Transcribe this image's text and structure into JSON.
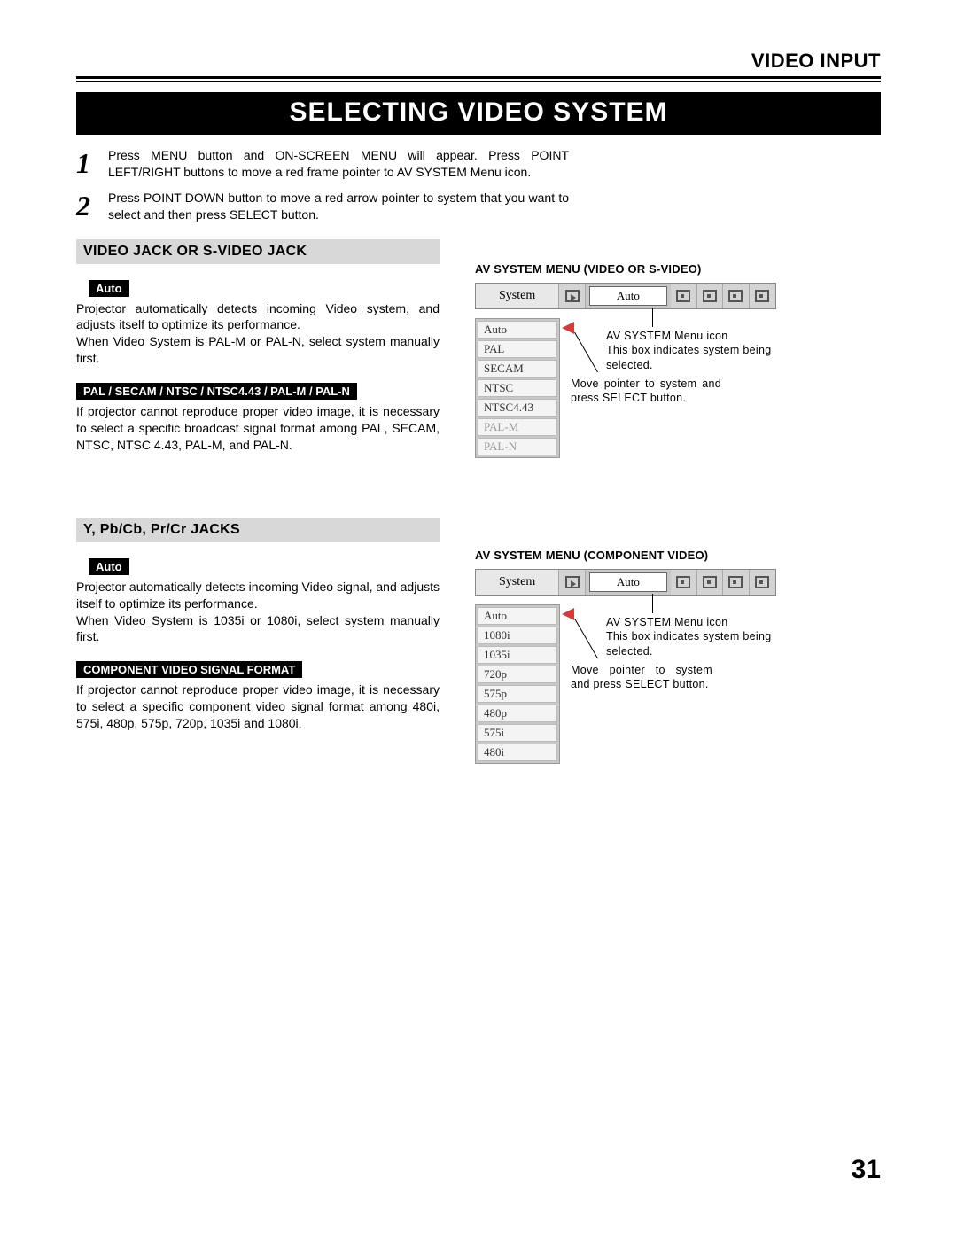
{
  "header": {
    "section": "VIDEO INPUT"
  },
  "title": "SELECTING VIDEO SYSTEM",
  "steps": [
    {
      "num": "1",
      "text": "Press MENU button and ON-SCREEN MENU will appear.  Press POINT LEFT/RIGHT buttons to move a red frame pointer to AV SYSTEM Menu icon."
    },
    {
      "num": "2",
      "text": "Press POINT DOWN button to move a red arrow pointer to system that you want to select and then press SELECT button."
    }
  ],
  "videoJack": {
    "heading": "VIDEO JACK OR S-VIDEO JACK",
    "auto_tag": "Auto",
    "auto_text": "Projector automatically detects incoming Video system, and adjusts itself to optimize its performance.\nWhen Video System is PAL-M or PAL-N, select system manually first.",
    "formats_tag": "PAL / SECAM / NTSC / NTSC4.43 / PAL-M / PAL-N",
    "formats_text": "If projector cannot reproduce proper video image, it is necessary to select a specific broadcast signal format among PAL, SECAM, NTSC, NTSC 4.43, PAL-M, and PAL-N."
  },
  "componentJack": {
    "heading": "Y, Pb/Cb, Pr/Cr JACKS",
    "auto_tag": "Auto",
    "auto_text": "Projector automatically detects incoming Video signal, and adjusts itself to optimize its performance.\nWhen Video System is 1035i or 1080i, select system manually first.",
    "formats_tag": "COMPONENT VIDEO SIGNAL FORMAT",
    "formats_text": "If projector cannot reproduce proper video image, it is necessary to select a specific component video signal format among 480i, 575i, 480p, 575p, 720p, 1035i and 1080i."
  },
  "menuVideo": {
    "caption": "AV SYSTEM MENU (VIDEO OR S-VIDEO)",
    "bar_label": "System",
    "bar_value": "Auto",
    "options": [
      {
        "label": "Auto",
        "dim": false
      },
      {
        "label": "PAL",
        "dim": false
      },
      {
        "label": "SECAM",
        "dim": false
      },
      {
        "label": "NTSC",
        "dim": false
      },
      {
        "label": "NTSC4.43",
        "dim": false
      },
      {
        "label": "PAL-M",
        "dim": true
      },
      {
        "label": "PAL-N",
        "dim": true
      }
    ],
    "callout1": "AV SYSTEM Menu icon\nThis box indicates system being selected.",
    "callout2": "Move pointer to  system and press SELECT button."
  },
  "menuComponent": {
    "caption": "AV SYSTEM MENU (COMPONENT VIDEO)",
    "bar_label": "System",
    "bar_value": "Auto",
    "options": [
      {
        "label": "Auto",
        "dim": false
      },
      {
        "label": "1080i",
        "dim": false
      },
      {
        "label": "1035i",
        "dim": false
      },
      {
        "label": "720p",
        "dim": false
      },
      {
        "label": "575p",
        "dim": false
      },
      {
        "label": "480p",
        "dim": false
      },
      {
        "label": "575i",
        "dim": false
      },
      {
        "label": "480i",
        "dim": false
      }
    ],
    "callout1": "AV SYSTEM Menu icon\nThis box indicates system being selected.",
    "callout2": "Move pointer to system and press SELECT button."
  },
  "page_number": "31",
  "colors": {
    "pointer": "#d63a3a",
    "heading_bg": "#d8d8d8",
    "menu_bg": "#c8c8c8",
    "option_bg": "#f4f4f4"
  }
}
